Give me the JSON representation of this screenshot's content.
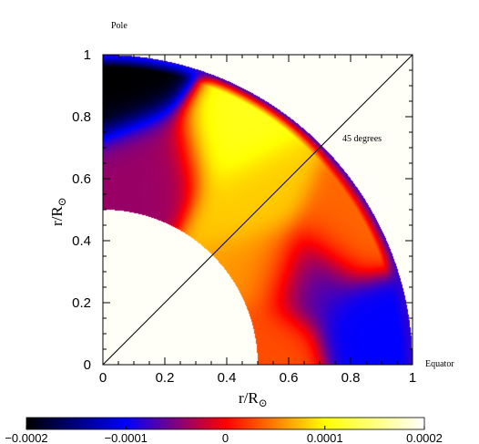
{
  "chart_data": {
    "type": "heatmap",
    "annotations": {
      "pole": "Pole",
      "equator": "Equator",
      "diagonal": "45 degrees"
    },
    "xlabel": "r/R",
    "ylabel": "r/R",
    "label_subscript": "⊙",
    "x_ticks": [
      "0",
      "0.2",
      "0.4",
      "0.6",
      "0.8",
      "1"
    ],
    "y_ticks": [
      "0",
      "0.2",
      "0.4",
      "0.6",
      "0.8",
      "1"
    ],
    "xlim": [
      0,
      1
    ],
    "ylim": [
      0,
      1
    ],
    "inner_radius": 0.5,
    "outer_radius": 1.0,
    "colorbar": {
      "range": [
        -0.0002,
        0.0002
      ],
      "ticks": [
        "−0.0002",
        "−0.0001",
        "0",
        "0.0001",
        "0.0002"
      ],
      "colormap": [
        "#000000",
        "#0000ff",
        "#ff0000",
        "#ffff00",
        "#ffffff"
      ]
    },
    "field_features": [
      {
        "r": 0.91,
        "lat_deg": 84,
        "value": -0.0002
      },
      {
        "r": 0.82,
        "lat_deg": 62,
        "value": 0.00011
      },
      {
        "r": 0.72,
        "lat_deg": 48,
        "value": 8e-05
      },
      {
        "r": 0.62,
        "lat_deg": 30,
        "value": 6e-05
      },
      {
        "r": 0.88,
        "lat_deg": 28,
        "value": 4e-05
      },
      {
        "r": 0.72,
        "lat_deg": 22,
        "value": -8e-05
      },
      {
        "r": 0.86,
        "lat_deg": 8,
        "value": -0.0001
      },
      {
        "r": 0.55,
        "lat_deg": 6,
        "value": 3e-05
      },
      {
        "r": 0.7,
        "lat_deg": 75,
        "value": -4e-05
      }
    ]
  }
}
